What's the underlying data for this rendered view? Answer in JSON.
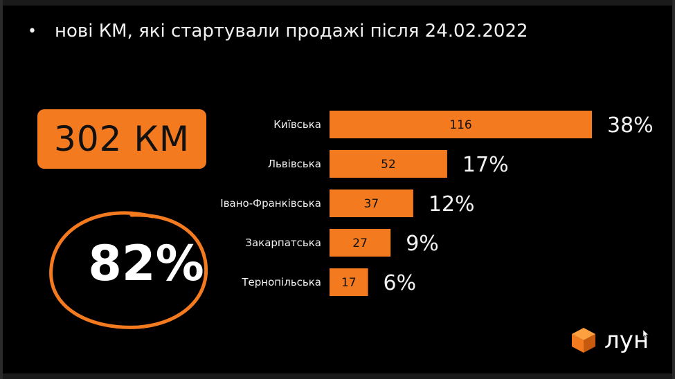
{
  "headline": {
    "bullet": "•",
    "text": "нові КМ, які стартували продажі після 24.02.2022"
  },
  "total_box": {
    "text": "302 КМ"
  },
  "highlight": {
    "text": "82%"
  },
  "colors": {
    "accent": "#F47A20",
    "background": "#000000",
    "text": "#f2f2f2"
  },
  "logo": {
    "icon": "orange-cube-icon",
    "text": "лун"
  },
  "chart_data": {
    "type": "bar",
    "orientation": "horizontal",
    "categories": [
      "Київська",
      "Львівська",
      "Івано-Франківська",
      "Закарпатська",
      "Тернопільська"
    ],
    "values": [
      116,
      52,
      37,
      27,
      17
    ],
    "percent_labels": [
      "38%",
      "17%",
      "12%",
      "9%",
      "6%"
    ],
    "title": "",
    "xlabel": "",
    "ylabel": "",
    "xlim": [
      0,
      116
    ],
    "grid": false,
    "legend": "none",
    "bar_color": "#F47A20"
  }
}
